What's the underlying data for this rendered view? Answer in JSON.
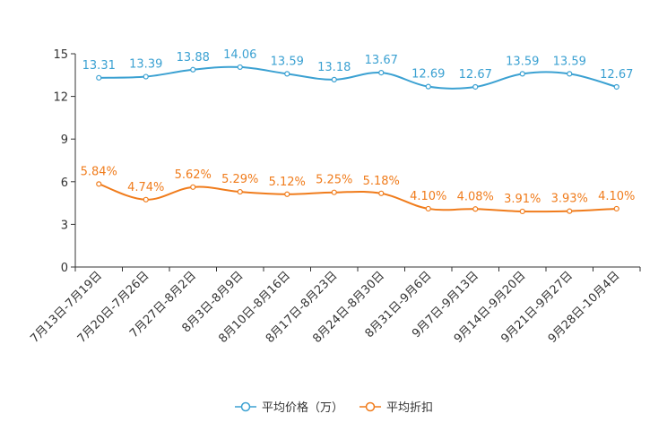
{
  "chart_data": {
    "type": "line",
    "title": "",
    "xlabel": "",
    "ylabel": "",
    "ylim": [
      0,
      15
    ],
    "yticks": [
      "0",
      "3",
      "6",
      "9",
      "12",
      "15"
    ],
    "categories": [
      "7月13日-7月19日",
      "7月20日-7月26日",
      "7月27日-8月2日",
      "8月3日-8月9日",
      "8月10日-8月16日",
      "8月17日-8月23日",
      "8月24日-8月30日",
      "8月31日-9月6日",
      "9月7日-9月13日",
      "9月14日-9月20日",
      "9月21日-9月27日",
      "9月28日-10月4日"
    ],
    "series": [
      {
        "name": "平均价格（万）",
        "color": "#3ba1d2",
        "values": [
          13.31,
          13.39,
          13.88,
          14.06,
          13.59,
          13.18,
          13.67,
          12.69,
          12.67,
          13.59,
          13.59,
          12.67
        ],
        "labels": [
          "13.31",
          "13.39",
          "13.88",
          "14.06",
          "13.59",
          "13.18",
          "13.67",
          "12.69",
          "12.67",
          "13.59",
          "13.59",
          "12.67"
        ]
      },
      {
        "name": "平均折扣",
        "color": "#f07c1c",
        "values": [
          5.84,
          4.74,
          5.62,
          5.29,
          5.12,
          5.25,
          5.18,
          4.1,
          4.08,
          3.91,
          3.93,
          4.1
        ],
        "labels": [
          "5.84%",
          "4.74%",
          "5.62%",
          "5.29%",
          "5.12%",
          "5.25%",
          "5.18%",
          "4.10%",
          "4.08%",
          "3.91%",
          "3.93%",
          "4.10%"
        ]
      }
    ],
    "legend_position": "bottom-center",
    "grid": false
  }
}
